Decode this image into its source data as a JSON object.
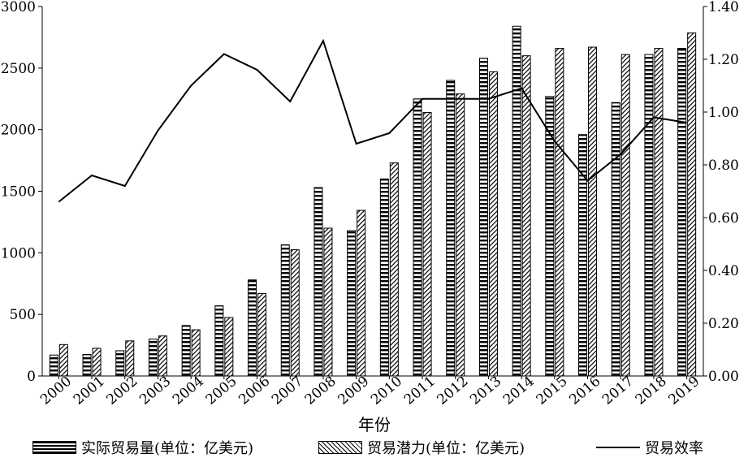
{
  "chart_data": {
    "type": "bar",
    "title": "",
    "xlabel": "年份",
    "ylabel_left": "",
    "ylabel_right": "",
    "categories": [
      "2000",
      "2001",
      "2002",
      "2003",
      "2004",
      "2005",
      "2006",
      "2007",
      "2008",
      "2009",
      "2010",
      "2011",
      "2012",
      "2013",
      "2014",
      "2015",
      "2016",
      "2017",
      "2018",
      "2019"
    ],
    "series": [
      {
        "name": "实际贸易量(单位：亿美元)",
        "kind": "bar",
        "axis": "left",
        "pattern": "horizontal-stripes",
        "values": [
          170,
          175,
          205,
          300,
          410,
          570,
          780,
          1065,
          1530,
          1180,
          1600,
          2250,
          2400,
          2580,
          2840,
          2270,
          1960,
          2220,
          2610,
          2660
        ]
      },
      {
        "name": "贸易潜力(单位：亿美元)",
        "kind": "bar",
        "axis": "left",
        "pattern": "diagonal-hatch",
        "values": [
          255,
          225,
          285,
          325,
          375,
          475,
          670,
          1025,
          1200,
          1345,
          1730,
          2140,
          2290,
          2470,
          2600,
          2660,
          2670,
          2610,
          2660,
          2785
        ]
      },
      {
        "name": "贸易效率",
        "kind": "line",
        "axis": "right",
        "values": [
          0.66,
          0.76,
          0.72,
          0.93,
          1.1,
          1.22,
          1.16,
          1.04,
          1.27,
          0.88,
          0.92,
          1.05,
          1.05,
          1.05,
          1.09,
          0.89,
          0.74,
          0.84,
          0.98,
          0.96
        ]
      }
    ],
    "ylim_left": [
      0,
      3000
    ],
    "yticks_left": [
      "0",
      "500",
      "1000",
      "1500",
      "2000",
      "2500",
      "3000"
    ],
    "ylim_right": [
      0,
      1.4
    ],
    "yticks_right": [
      "0.00",
      "0.20",
      "0.40",
      "0.60",
      "0.80",
      "1.00",
      "1.20",
      "1.40"
    ],
    "grid": false,
    "legend_position": "bottom"
  }
}
